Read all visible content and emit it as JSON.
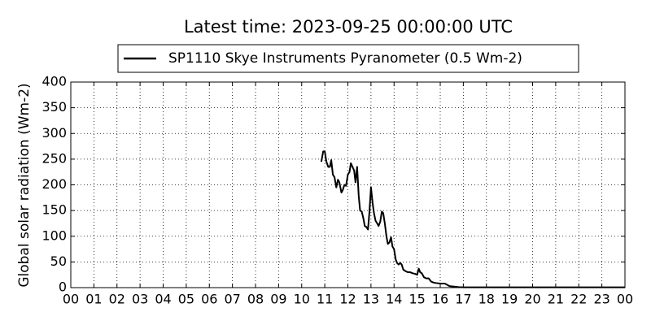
{
  "chart_data": {
    "type": "line",
    "title": "Latest time: 2023-09-25 00:00:00 UTC",
    "y_label": "Global solar radiation (Wm-2)",
    "x": [
      10.85,
      10.93,
      11.0,
      11.07,
      11.15,
      11.22,
      11.28,
      11.35,
      11.42,
      11.5,
      11.57,
      11.63,
      11.72,
      11.78,
      11.85,
      11.92,
      12.0,
      12.07,
      12.13,
      12.2,
      12.27,
      12.33,
      12.4,
      12.47,
      12.53,
      12.6,
      12.67,
      12.73,
      12.8,
      12.87,
      12.93,
      13.0,
      13.07,
      13.13,
      13.2,
      13.27,
      13.33,
      13.4,
      13.47,
      13.53,
      13.6,
      13.67,
      13.73,
      13.8,
      13.87,
      13.93,
      14.0,
      14.07,
      14.13,
      14.2,
      14.27,
      14.33,
      14.4,
      14.5,
      14.6,
      14.7,
      14.8,
      14.9,
      15.0,
      15.07,
      15.13,
      15.2,
      15.3,
      15.4,
      15.5,
      15.6,
      15.7,
      15.8,
      16.0,
      16.2,
      16.4,
      16.6,
      16.8,
      17.0,
      18.0,
      19.0,
      20.0,
      21.0,
      22.0,
      23.0,
      24.0
    ],
    "series": [
      {
        "name": "SP1110 Skye Instruments Pyranometer (0.5 Wm-2)",
        "color": "#000000",
        "values": [
          245,
          265,
          265,
          245,
          235,
          235,
          248,
          220,
          215,
          195,
          210,
          205,
          185,
          190,
          200,
          198,
          220,
          225,
          242,
          235,
          228,
          205,
          235,
          178,
          150,
          148,
          135,
          120,
          118,
          113,
          145,
          195,
          165,
          145,
          130,
          125,
          120,
          128,
          148,
          145,
          125,
          100,
          85,
          88,
          98,
          80,
          75,
          55,
          48,
          45,
          48,
          45,
          35,
          32,
          30,
          30,
          28,
          27,
          25,
          37,
          30,
          28,
          20,
          18,
          18,
          12,
          10,
          9,
          8,
          8,
          3,
          2,
          1,
          0.5,
          0.5,
          0.5,
          0.5,
          0.5,
          0.5,
          0.5,
          0.5
        ]
      }
    ],
    "xlim": [
      0,
      24
    ],
    "xticks": [
      {
        "value": 0,
        "label": "00"
      },
      {
        "value": 1,
        "label": "01"
      },
      {
        "value": 2,
        "label": "02"
      },
      {
        "value": 3,
        "label": "03"
      },
      {
        "value": 4,
        "label": "04"
      },
      {
        "value": 5,
        "label": "05"
      },
      {
        "value": 6,
        "label": "06"
      },
      {
        "value": 7,
        "label": "07"
      },
      {
        "value": 8,
        "label": "08"
      },
      {
        "value": 9,
        "label": "09"
      },
      10,
      11,
      12,
      13,
      14,
      15,
      16,
      17,
      18,
      19,
      20,
      21,
      22,
      23,
      {
        "value": 24,
        "label": "00"
      }
    ],
    "ylim": [
      0,
      400
    ],
    "yticks": [
      0,
      50,
      100,
      150,
      200,
      250,
      300,
      350,
      400
    ],
    "grid": true,
    "legend": "top"
  }
}
